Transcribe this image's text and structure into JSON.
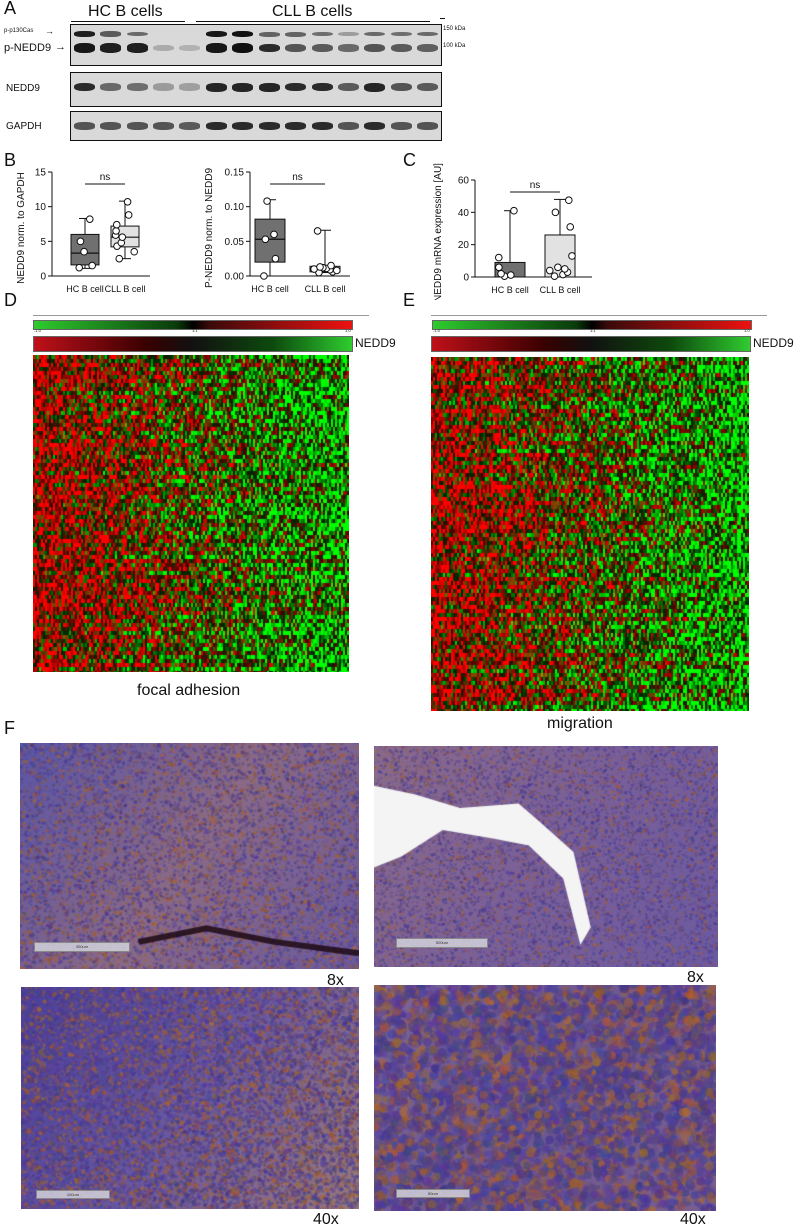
{
  "panel_labels": {
    "A": "A",
    "B": "B",
    "C": "C",
    "D": "D",
    "E": "E",
    "F": "F"
  },
  "panel_a": {
    "group_hc": "HC B cells",
    "group_cll": "CLL B cells",
    "blot1_label_top": "p-p130Cas",
    "blot1_label_main": "p-NEDD9",
    "marker_150": "150 kDa",
    "marker_100": "100 kDa",
    "blot2_label": "NEDD9",
    "blot3_label": "GAPDH",
    "lane_count": 14,
    "hc_lanes": 5,
    "band_colors": {
      "dark": "#111111",
      "medium": "#3a3a3a",
      "light": "#7a7a7a"
    }
  },
  "chart_data": [
    {
      "type": "box",
      "panel": "B",
      "ylabel": "NEDD9 norm. to GAPDH",
      "ylim": [
        0,
        15
      ],
      "yticks": [
        0,
        5,
        10,
        15
      ],
      "categories": [
        "HC B cell",
        "CLL B cell"
      ],
      "fill_colors": [
        "#707070",
        "#e2e2e2"
      ],
      "annotation": "ns",
      "boxes": [
        {
          "min": 1.1,
          "q1": 1.6,
          "median": 3.3,
          "q3": 6.0,
          "max": 8.3,
          "points": [
            1.2,
            1.5,
            3.5,
            5.0,
            8.2
          ]
        },
        {
          "min": 2.5,
          "q1": 4.2,
          "median": 5.6,
          "q3": 7.2,
          "max": 10.8,
          "points": [
            2.5,
            3.5,
            4.3,
            4.8,
            5.6,
            5.9,
            6.5,
            7.4,
            8.8,
            10.7
          ]
        }
      ]
    },
    {
      "type": "box",
      "panel": "B",
      "ylabel": "P-NEDD9 norm. to NEDD9",
      "ylim": [
        0,
        0.15
      ],
      "yticks": [
        "0.00",
        "0.05",
        "0.10",
        "0.15"
      ],
      "categories": [
        "HC B cell",
        "CLL B cell"
      ],
      "fill_colors": [
        "#707070",
        "#e2e2e2"
      ],
      "annotation": "ns",
      "boxes": [
        {
          "min": 0.0,
          "q1": 0.02,
          "median": 0.053,
          "q3": 0.082,
          "max": 0.11,
          "points": [
            0.0,
            0.025,
            0.053,
            0.06,
            0.108
          ]
        },
        {
          "min": 0.005,
          "q1": 0.006,
          "median": 0.01,
          "q3": 0.014,
          "max": 0.066,
          "points": [
            0.005,
            0.006,
            0.008,
            0.009,
            0.01,
            0.011,
            0.012,
            0.013,
            0.015,
            0.065
          ]
        }
      ]
    },
    {
      "type": "bar",
      "panel": "C",
      "ylabel": "NEDD9 mRNA expression [AU]",
      "ylim": [
        0,
        60
      ],
      "yticks": [
        0,
        20,
        40,
        60
      ],
      "categories": [
        "HC B cell",
        "CLL B cell"
      ],
      "fill_colors": [
        "#707070",
        "#e2e2e2"
      ],
      "values": [
        9,
        26
      ],
      "error_high": [
        41,
        48
      ],
      "annotation": "ns",
      "points": [
        [
          0.5,
          1.2,
          2.0,
          6.0,
          12.0,
          41.0
        ],
        [
          0.5,
          1.5,
          3.0,
          4.0,
          5.0,
          6.0,
          13.0,
          31.0,
          40.0,
          47.5
        ]
      ]
    }
  ],
  "panel_d": {
    "scale_min": "-1.0",
    "scale_mid": "1:1",
    "scale_max": "1.0",
    "gene_label": "NEDD9",
    "caption": "focal adhesion"
  },
  "panel_e": {
    "scale_min": "-1.0",
    "scale_mid": "1:1",
    "scale_max": "1.0",
    "gene_label": "NEDD9",
    "caption": "migration"
  },
  "panel_f": {
    "mag_top_left": "8x",
    "mag_top_right": "8x",
    "mag_bottom_left": "40x",
    "mag_bottom_right": "40x",
    "scale_top_left": "300um",
    "scale_top_right": "500um",
    "scale_bottom_left": "100um",
    "scale_bottom_right": "50um"
  }
}
